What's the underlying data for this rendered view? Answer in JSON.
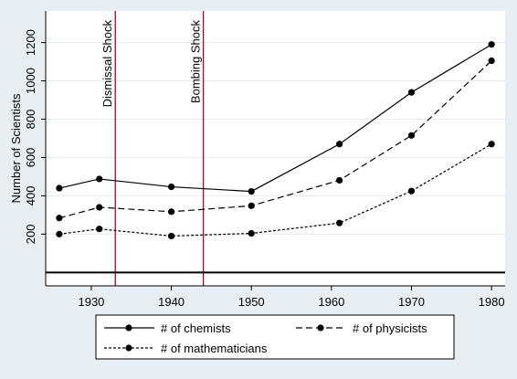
{
  "chart_data": {
    "type": "line",
    "ylabel": "Number of Scientists",
    "xlabel": "",
    "xlim": [
      1924.3,
      1981.7
    ],
    "ylim": [
      -70,
      1365
    ],
    "x_ticks": [
      "1930",
      "1940",
      "1950",
      "1960",
      "1970",
      "1980"
    ],
    "y_ticks": [
      "200",
      "400",
      "600",
      "800",
      "1000",
      "1200"
    ],
    "grid": true,
    "baseline": 0,
    "legend_position": "bottom",
    "vlines": [
      {
        "x": 1933,
        "label": "Dismissal Shock",
        "color": "#b0003a"
      },
      {
        "x": 1944,
        "label": "Bombing Shock",
        "color": "#b0003a"
      }
    ],
    "series": [
      {
        "name": "# of chemists",
        "style": "solid",
        "x": [
          1926,
          1931,
          1940,
          1950,
          1961,
          1970,
          1980
        ],
        "values": [
          440,
          488,
          447,
          423,
          670,
          940,
          1190
        ]
      },
      {
        "name": "# of physicists",
        "style": "dashed",
        "x": [
          1926,
          1931,
          1940,
          1950,
          1961,
          1970,
          1980
        ],
        "values": [
          284,
          340,
          317,
          348,
          481,
          715,
          1105
        ]
      },
      {
        "name": "# of mathematicians",
        "style": "dotted",
        "x": [
          1926,
          1931,
          1940,
          1950,
          1961,
          1970,
          1980
        ],
        "values": [
          200,
          227,
          190,
          204,
          258,
          425,
          670
        ]
      }
    ]
  },
  "colors": {
    "background": "#e9eef3",
    "plot": "#ffffff",
    "line": "#000000",
    "shock": "#b0003a"
  }
}
